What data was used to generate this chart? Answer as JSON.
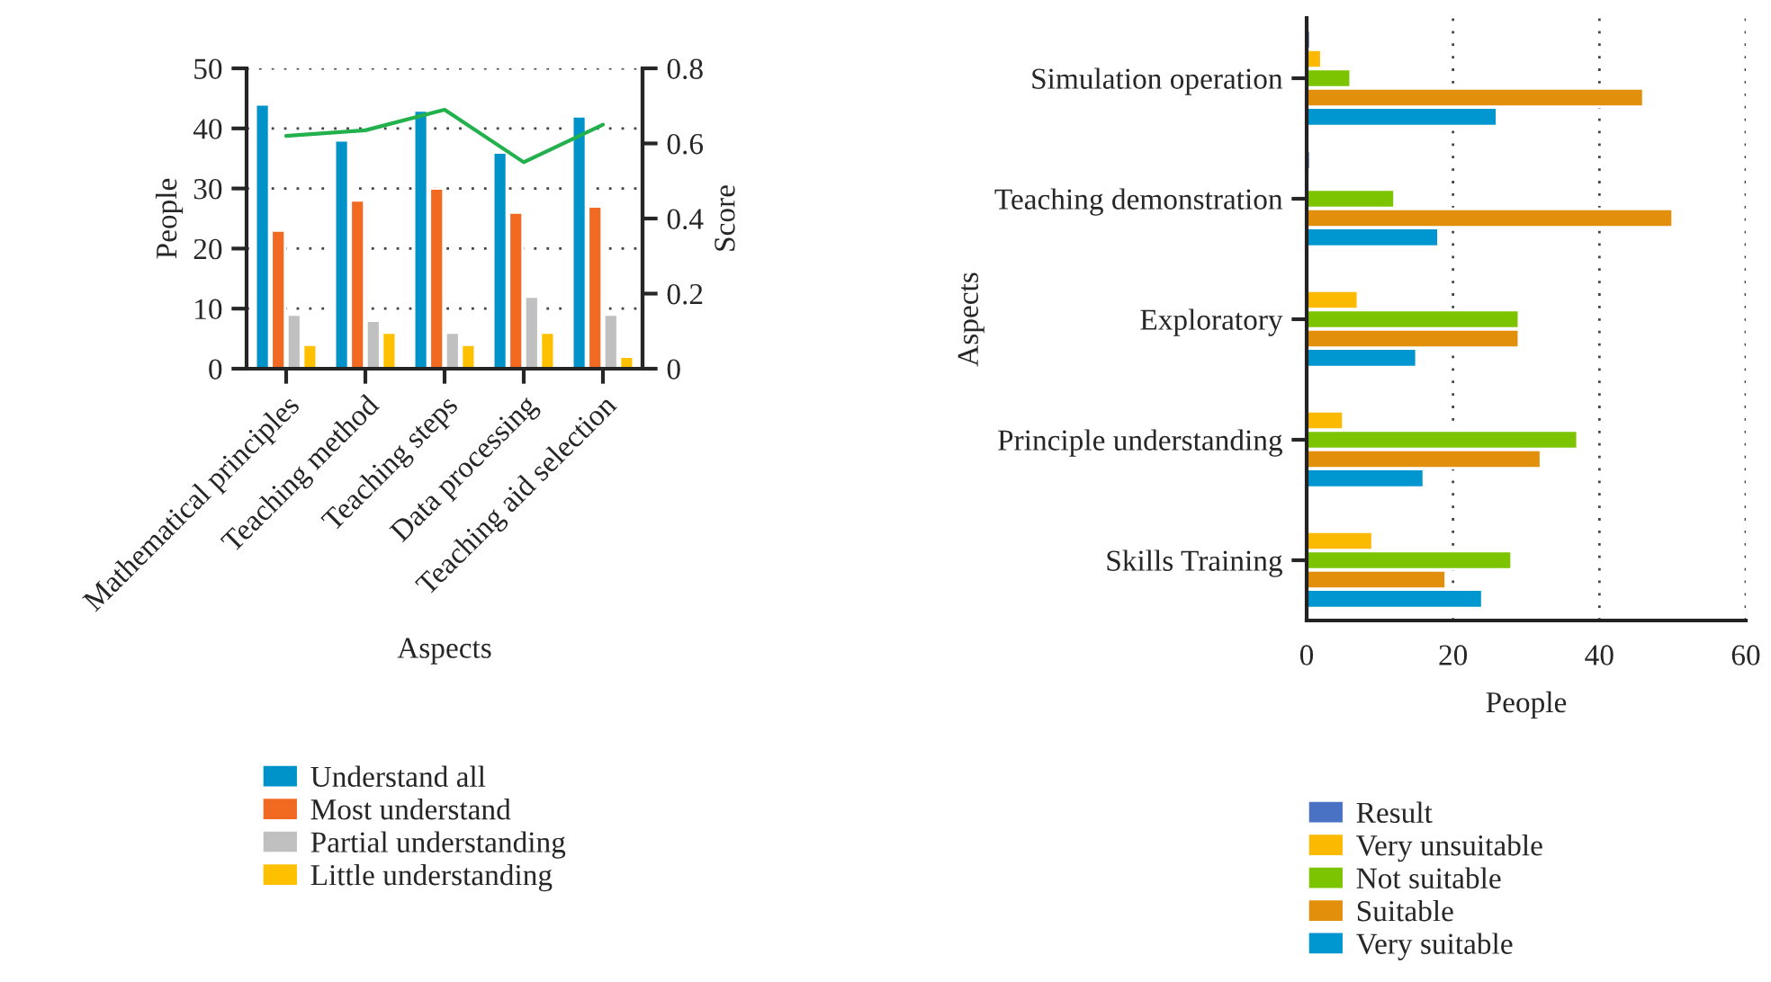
{
  "chart_data": [
    {
      "type": "bar",
      "xlabel": "Aspects",
      "ylabel": "People",
      "y2label": "Score",
      "categories": [
        "Mathematical principles",
        "Teaching method",
        "Teaching steps",
        "Data processing",
        "Teaching aid selection"
      ],
      "series": [
        {
          "name": "Understand all",
          "color": "#0093c9",
          "values": [
            44,
            38,
            43,
            36,
            42
          ]
        },
        {
          "name": "Most understand",
          "color": "#f26a21",
          "values": [
            23,
            28,
            30,
            26,
            27
          ]
        },
        {
          "name": "Partial understanding",
          "color": "#c0c0c0",
          "values": [
            9,
            8,
            6,
            12,
            9
          ]
        },
        {
          "name": "Little understanding",
          "color": "#ffc000",
          "values": [
            4,
            6,
            4,
            6,
            2
          ]
        },
        {
          "type": "line",
          "axis": "y2",
          "color": "#22b14c",
          "values": [
            0.62,
            0.635,
            0.69,
            0.55,
            0.65
          ]
        }
      ],
      "ylim": [
        0,
        50
      ],
      "yticks": [
        0,
        10,
        20,
        30,
        40,
        50
      ],
      "y2lim": [
        0,
        0.8
      ],
      "y2ticks": [
        0,
        0.2,
        0.4,
        0.6,
        0.8
      ],
      "grid": "y",
      "legend": "bottom"
    },
    {
      "type": "bar",
      "orientation": "horizontal",
      "xlabel": "People",
      "ylabel": "Aspects",
      "categories": [
        "Simulation operation",
        "Teaching demonstration",
        "Exploratory",
        "Principle understanding",
        "Skills Training"
      ],
      "series": [
        {
          "name": "Result",
          "color": "#4a72c4",
          "values": [
            0.5,
            0.5,
            null,
            null,
            null
          ]
        },
        {
          "name": "Very unsuitable",
          "color": "#fbb900",
          "values": [
            2,
            null,
            7,
            5,
            9
          ]
        },
        {
          "name": "Not suitable",
          "color": "#7dc400",
          "values": [
            6,
            12,
            29,
            37,
            28
          ]
        },
        {
          "name": "Suitable",
          "color": "#e2900c",
          "values": [
            46,
            50,
            29,
            32,
            19
          ]
        },
        {
          "name": "Very suitable",
          "color": "#0096cf",
          "values": [
            26,
            18,
            15,
            16,
            24
          ]
        }
      ],
      "xlim": [
        0,
        60
      ],
      "xticks": [
        0,
        20,
        40,
        60
      ],
      "grid": "x",
      "legend": "bottom"
    }
  ]
}
